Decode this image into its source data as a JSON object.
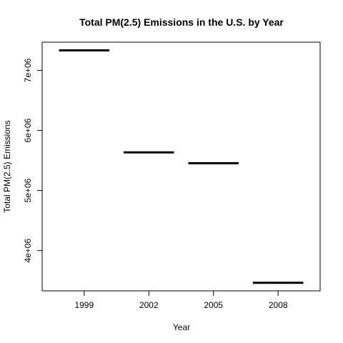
{
  "chart_data": {
    "type": "bar",
    "title": "Total PM(2.5) Emissions in the U.S. by Year",
    "xlabel": "Year",
    "ylabel": "Total PM(2.5) Emissions",
    "categories": [
      "1999",
      "2002",
      "2005",
      "2008"
    ],
    "values": [
      7332967,
      5635780,
      5454703,
      3464206
    ],
    "ylim": [
      3330000,
      7470000
    ],
    "yticks": [
      4000000,
      5000000,
      6000000,
      7000000
    ],
    "ytick_labels": [
      "4e+06",
      "5e+06",
      "6e+06",
      "7e+06"
    ],
    "grid": false,
    "bar_color": "#000000"
  }
}
